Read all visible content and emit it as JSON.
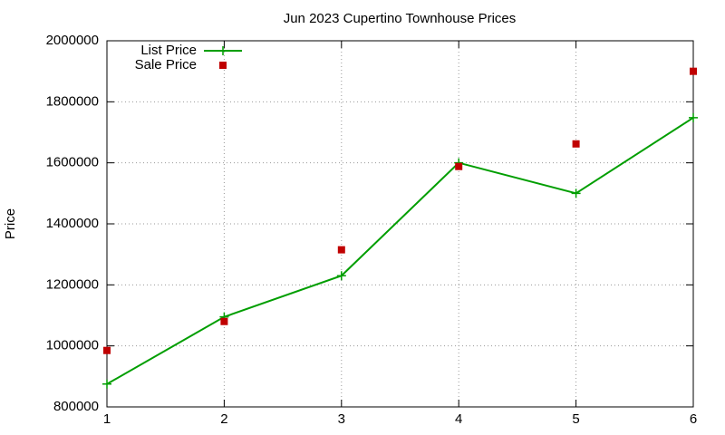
{
  "chart_data": {
    "type": "line",
    "title": "Jun 2023 Cupertino Townhouse Prices",
    "y_label": "Price",
    "x": [
      1,
      2,
      3,
      4,
      5,
      6
    ],
    "xlim": [
      1,
      6
    ],
    "xticks": [
      1,
      2,
      3,
      4,
      5,
      6
    ],
    "ylim": [
      800000,
      2000000
    ],
    "yticks": [
      800000,
      1000000,
      1200000,
      1400000,
      1600000,
      1800000,
      2000000
    ],
    "grid": true,
    "legend": "top-left",
    "series": [
      {
        "name": "List Price",
        "color": "#009e00",
        "style": "linespoints",
        "values": [
          875000,
          1095000,
          1230000,
          1600000,
          1500000,
          1748000
        ]
      },
      {
        "name": "Sale Price",
        "color": "#c00000",
        "style": "points",
        "values": [
          985000,
          1080000,
          1315000,
          1588000,
          1662000,
          1900000
        ]
      }
    ]
  }
}
